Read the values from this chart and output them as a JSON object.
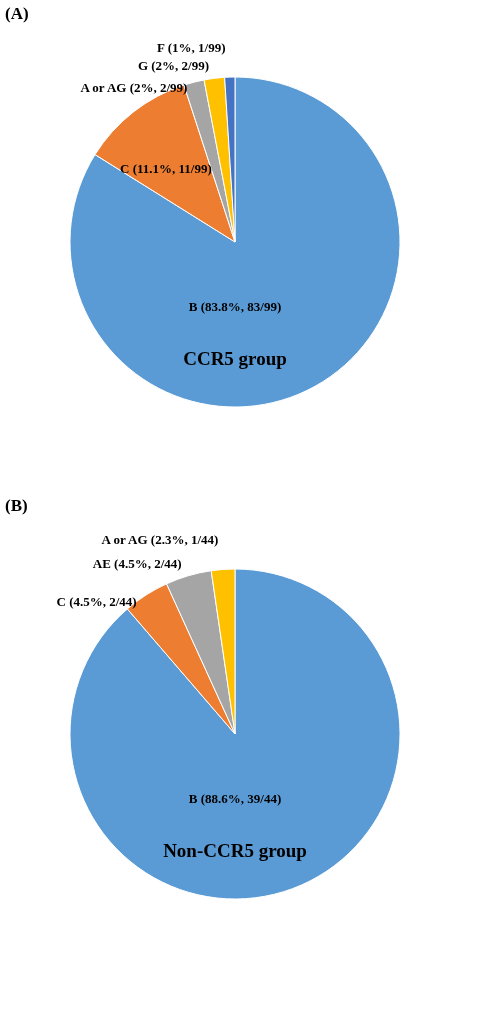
{
  "chart_data": [
    {
      "type": "pie",
      "title": "(A)",
      "categories": [
        "B (83.8%, 83/99)",
        "C (11.1%, 11/99)",
        "A or AG (2%, 2/99)",
        "G (2%, 2/99)",
        "F (1%, 1/99)"
      ],
      "values": [
        83.8,
        11.1,
        2,
        2,
        1
      ],
      "colors": [
        "#5b9bd5",
        "#ed7d31",
        "#a5a5a5",
        "#ffc000",
        "#4472c4"
      ],
      "annotations": [
        "CCR5 group"
      ]
    },
    {
      "type": "pie",
      "title": "(B)",
      "categories": [
        "B (88.6%, 39/44)",
        "C (4.5%, 2/44)",
        "AE (4.5%, 2/44)",
        "A or AG (2.3%, 1/44)"
      ],
      "values": [
        88.6,
        4.5,
        4.5,
        2.3
      ],
      "colors": [
        "#5b9bd5",
        "#ed7d31",
        "#a5a5a5",
        "#ffc000"
      ],
      "annotations": [
        "Non-CCR5 group"
      ]
    }
  ]
}
